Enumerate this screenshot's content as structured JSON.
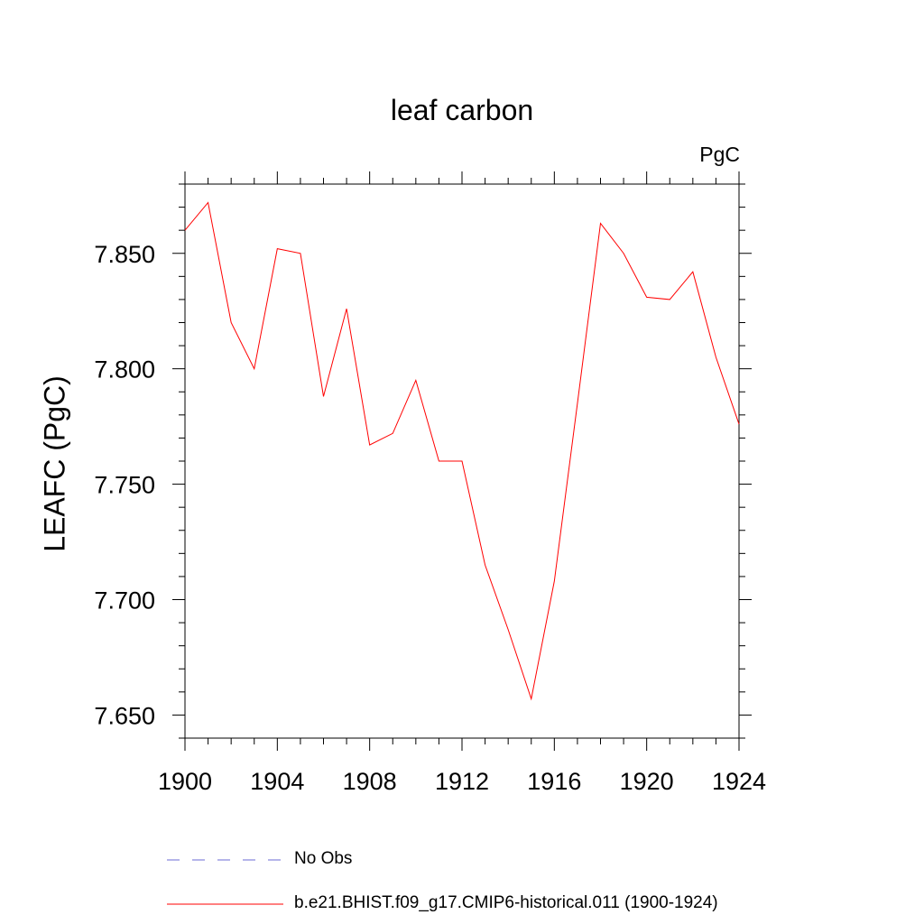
{
  "chart_data": {
    "type": "line",
    "title": "leaf carbon",
    "units_label": "PgC",
    "xlabel": "",
    "ylabel": "LEAFC  (PgC)",
    "xlim": [
      1900,
      1924
    ],
    "ylim": [
      7.64,
      7.88
    ],
    "x_ticks": [
      1900,
      1904,
      1908,
      1912,
      1916,
      1920,
      1924
    ],
    "x_tick_labels": [
      "1900",
      "1904",
      "1908",
      "1912",
      "1916",
      "1920",
      "1924"
    ],
    "y_ticks": [
      7.65,
      7.7,
      7.75,
      7.8,
      7.85
    ],
    "y_tick_labels": [
      "7.650",
      "7.700",
      "7.750",
      "7.800",
      "7.850"
    ],
    "grid": false,
    "legend_position": "bottom",
    "series": [
      {
        "name": "b.e21.BHIST.f09_g17.CMIP6-historical.011 (1900-1924)",
        "color": "#ff0000",
        "style": "solid",
        "x": [
          1900,
          1901,
          1902,
          1903,
          1904,
          1905,
          1906,
          1907,
          1908,
          1909,
          1910,
          1911,
          1912,
          1913,
          1914,
          1915,
          1916,
          1917,
          1918,
          1919,
          1920,
          1921,
          1922,
          1923,
          1924
        ],
        "values": [
          7.86,
          7.872,
          7.82,
          7.8,
          7.852,
          7.85,
          7.788,
          7.826,
          7.767,
          7.772,
          7.795,
          7.76,
          7.76,
          7.715,
          7.687,
          7.657,
          7.708,
          7.785,
          7.863,
          7.85,
          7.831,
          7.83,
          7.842,
          7.805,
          7.776
        ]
      }
    ],
    "legend": [
      {
        "label": "No Obs",
        "color": "#6b6bd6",
        "style": "dashed"
      },
      {
        "label": "b.e21.BHIST.f09_g17.CMIP6-historical.011 (1900-1924)",
        "color": "#ff0000",
        "style": "solid"
      }
    ]
  }
}
